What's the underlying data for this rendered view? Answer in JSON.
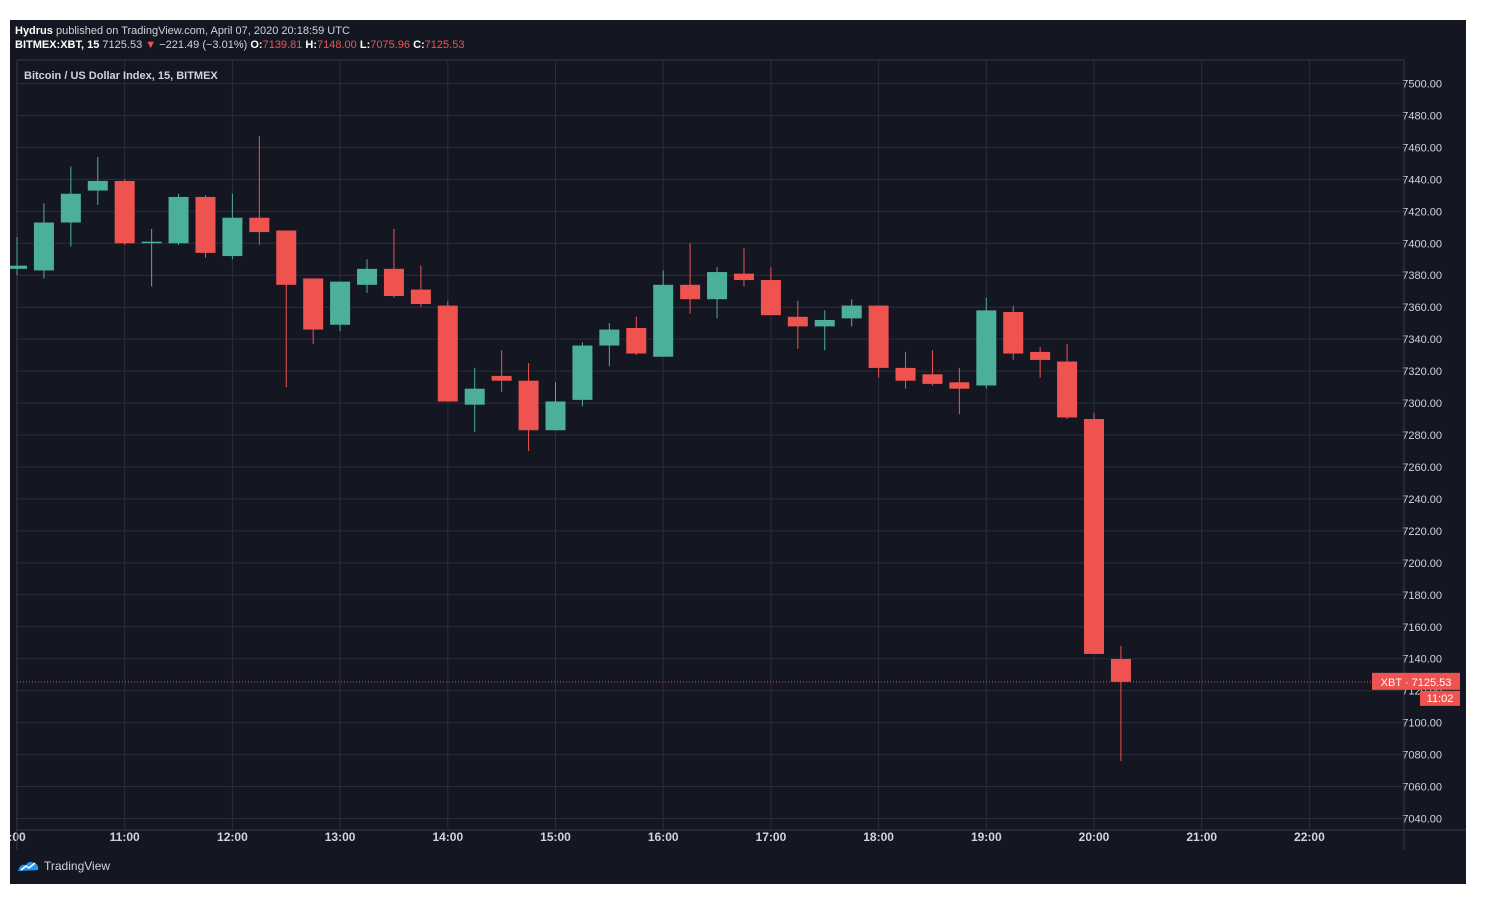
{
  "header": {
    "author": "Hydrus",
    "published": "published on TradingView.com, April 07, 2020 20:18:59 UTC",
    "symbol": "BITMEX:XBT, 15",
    "last": "7125.53",
    "change_arrow": "▼",
    "change": "−221.49 (−3.01%)",
    "o_label": "O:",
    "o_value": "7139.81",
    "h_label": "H:",
    "h_value": "7148.00",
    "l_label": "L:",
    "l_value": "7075.96",
    "c_label": "C:",
    "c_value": "7125.53"
  },
  "chart_data": {
    "type": "candlestick",
    "title": "Bitcoin / US Dollar Index, 15, BITMEX",
    "x_ticks": [
      {
        "label": ":00",
        "hour": 10
      },
      {
        "label": "11:00",
        "hour": 11
      },
      {
        "label": "12:00",
        "hour": 12
      },
      {
        "label": "13:00",
        "hour": 13
      },
      {
        "label": "14:00",
        "hour": 14
      },
      {
        "label": "15:00",
        "hour": 15
      },
      {
        "label": "16:00",
        "hour": 16
      },
      {
        "label": "17:00",
        "hour": 17
      },
      {
        "label": "18:00",
        "hour": 18
      },
      {
        "label": "19:00",
        "hour": 19
      },
      {
        "label": "20:00",
        "hour": 20
      },
      {
        "label": "21:00",
        "hour": 21
      },
      {
        "label": "22:00",
        "hour": 22
      }
    ],
    "y_ticks": [
      "7040.00",
      "7060.00",
      "7080.00",
      "7100.00",
      "7120.00",
      "7140.00",
      "7160.00",
      "7180.00",
      "7200.00",
      "7220.00",
      "7240.00",
      "7260.00",
      "7280.00",
      "7300.00",
      "7320.00",
      "7340.00",
      "7360.00",
      "7380.00",
      "7400.00",
      "7420.00",
      "7440.00",
      "7460.00",
      "7480.00",
      "7500.00"
    ],
    "ylim": [
      7040,
      7500
    ],
    "candles": [
      {
        "t": 10.0,
        "o": 7384,
        "h": 7404,
        "l": 7380,
        "c": 7386
      },
      {
        "t": 10.25,
        "o": 7383,
        "h": 7425,
        "l": 7378,
        "c": 7413
      },
      {
        "t": 10.5,
        "o": 7413,
        "h": 7448,
        "l": 7398,
        "c": 7431
      },
      {
        "t": 10.75,
        "o": 7433,
        "h": 7454,
        "l": 7424,
        "c": 7439
      },
      {
        "t": 11.0,
        "o": 7439,
        "h": 7440,
        "l": 7399,
        "c": 7400
      },
      {
        "t": 11.25,
        "o": 7400,
        "h": 7409,
        "l": 7373,
        "c": 7401
      },
      {
        "t": 11.5,
        "o": 7400,
        "h": 7431,
        "l": 7399,
        "c": 7429
      },
      {
        "t": 11.75,
        "o": 7429,
        "h": 7430,
        "l": 7391,
        "c": 7394
      },
      {
        "t": 12.0,
        "o": 7392,
        "h": 7431,
        "l": 7390,
        "c": 7416
      },
      {
        "t": 12.25,
        "o": 7416,
        "h": 7467,
        "l": 7399,
        "c": 7407
      },
      {
        "t": 12.5,
        "o": 7408,
        "h": 7408,
        "l": 7310,
        "c": 7374
      },
      {
        "t": 12.75,
        "o": 7378,
        "h": 7378,
        "l": 7337,
        "c": 7346
      },
      {
        "t": 13.0,
        "o": 7349,
        "h": 7376,
        "l": 7345,
        "c": 7376
      },
      {
        "t": 13.25,
        "o": 7374,
        "h": 7390,
        "l": 7369,
        "c": 7384
      },
      {
        "t": 13.5,
        "o": 7384,
        "h": 7409,
        "l": 7366,
        "c": 7367
      },
      {
        "t": 13.75,
        "o": 7371,
        "h": 7386,
        "l": 7360,
        "c": 7362
      },
      {
        "t": 14.0,
        "o": 7361,
        "h": 7364,
        "l": 7301,
        "c": 7301
      },
      {
        "t": 14.25,
        "o": 7299,
        "h": 7322,
        "l": 7282,
        "c": 7309
      },
      {
        "t": 14.5,
        "o": 7317,
        "h": 7333,
        "l": 7307,
        "c": 7314
      },
      {
        "t": 14.75,
        "o": 7314,
        "h": 7325,
        "l": 7270,
        "c": 7283
      },
      {
        "t": 15.0,
        "o": 7283,
        "h": 7313,
        "l": 7283,
        "c": 7301
      },
      {
        "t": 15.25,
        "o": 7302,
        "h": 7338,
        "l": 7298,
        "c": 7336
      },
      {
        "t": 15.5,
        "o": 7336,
        "h": 7350,
        "l": 7323,
        "c": 7346
      },
      {
        "t": 15.75,
        "o": 7347,
        "h": 7354,
        "l": 7330,
        "c": 7331
      },
      {
        "t": 16.0,
        "o": 7329,
        "h": 7383,
        "l": 7329,
        "c": 7374
      },
      {
        "t": 16.25,
        "o": 7374,
        "h": 7400,
        "l": 7356,
        "c": 7365
      },
      {
        "t": 16.5,
        "o": 7365,
        "h": 7385,
        "l": 7353,
        "c": 7382
      },
      {
        "t": 16.75,
        "o": 7381,
        "h": 7397,
        "l": 7373,
        "c": 7377
      },
      {
        "t": 17.0,
        "o": 7377,
        "h": 7385,
        "l": 7355,
        "c": 7355
      },
      {
        "t": 17.25,
        "o": 7354,
        "h": 7364,
        "l": 7334,
        "c": 7348
      },
      {
        "t": 17.5,
        "o": 7348,
        "h": 7358,
        "l": 7333,
        "c": 7352
      },
      {
        "t": 17.75,
        "o": 7353,
        "h": 7365,
        "l": 7348,
        "c": 7361
      },
      {
        "t": 18.0,
        "o": 7361,
        "h": 7361,
        "l": 7316,
        "c": 7322
      },
      {
        "t": 18.25,
        "o": 7322,
        "h": 7332,
        "l": 7309,
        "c": 7314
      },
      {
        "t": 18.5,
        "o": 7318,
        "h": 7333,
        "l": 7311,
        "c": 7312
      },
      {
        "t": 18.75,
        "o": 7313,
        "h": 7322,
        "l": 7293,
        "c": 7309
      },
      {
        "t": 19.0,
        "o": 7311,
        "h": 7366,
        "l": 7309,
        "c": 7358
      },
      {
        "t": 19.25,
        "o": 7357,
        "h": 7361,
        "l": 7327,
        "c": 7331
      },
      {
        "t": 19.5,
        "o": 7332,
        "h": 7335,
        "l": 7316,
        "c": 7327
      },
      {
        "t": 19.75,
        "o": 7326,
        "h": 7337,
        "l": 7290,
        "c": 7291
      },
      {
        "t": 20.0,
        "o": 7290,
        "h": 7294,
        "l": 7143,
        "c": 7143
      },
      {
        "t": 20.25,
        "o": 7139.81,
        "h": 7148,
        "l": 7075.96,
        "c": 7125.53
      }
    ],
    "last_price_label": "XBT · 7125.53",
    "countdown": "11:02",
    "colors": {
      "up": "#4caf9b",
      "down": "#ef5350",
      "background": "#141722",
      "grid": "#2a2e39",
      "text": "#d1d4dc"
    }
  },
  "footer": {
    "brand": "TradingView"
  }
}
